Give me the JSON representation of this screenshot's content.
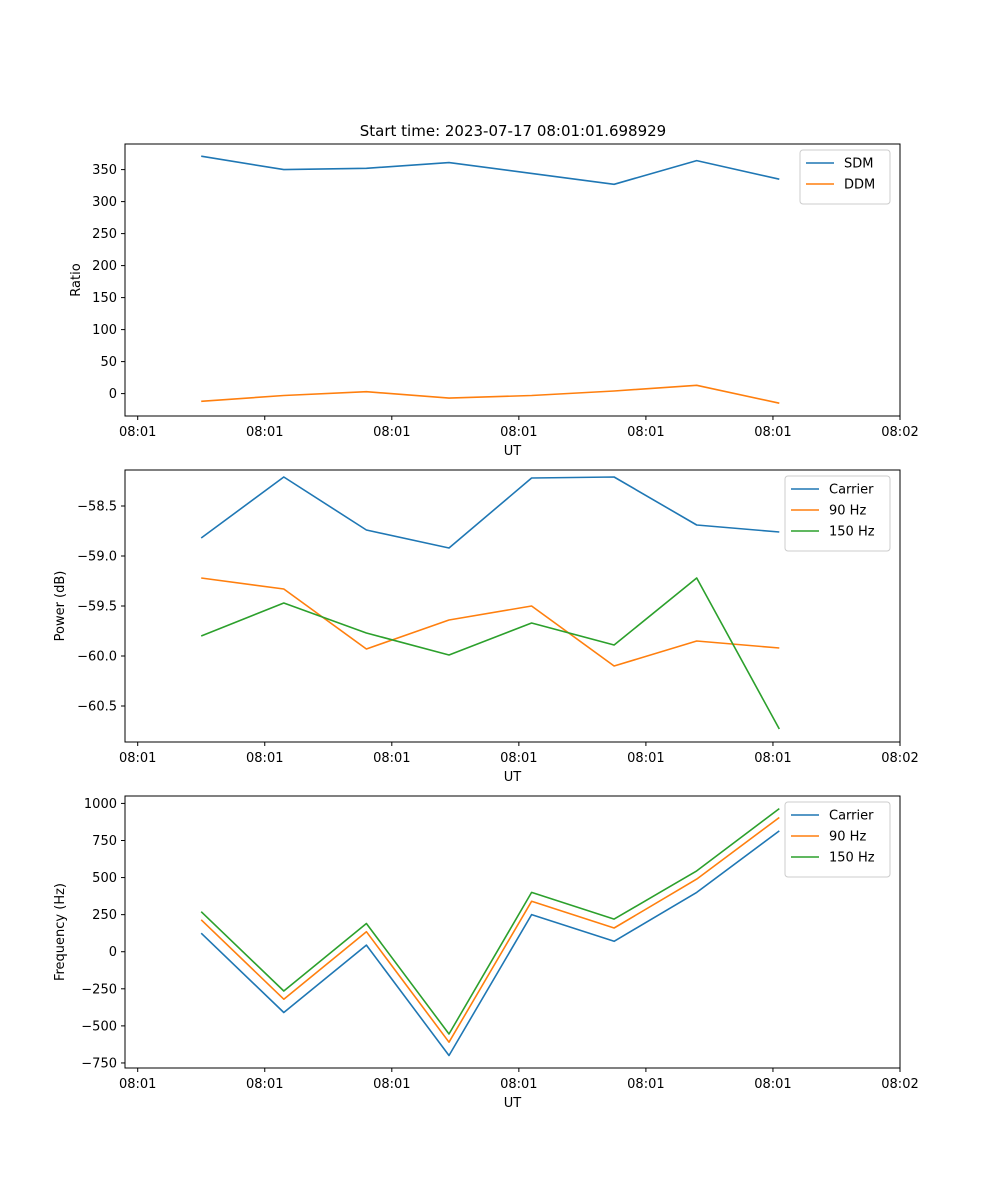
{
  "figure_title": "Start time: 2023-07-17 08:01:01.698929",
  "chart_data": [
    {
      "type": "line",
      "title": "Start time: 2023-07-17 08:01:01.698929",
      "xlabel": "UT",
      "ylabel": "Ratio",
      "x_tick_labels": [
        "08:01",
        "08:01",
        "08:01",
        "08:01",
        "08:01",
        "08:01",
        "08:02"
      ],
      "x": [
        0.5,
        1.15,
        1.8,
        2.45,
        3.1,
        3.75,
        4.4,
        5.05
      ],
      "xlim": [
        -0.1,
        6.0
      ],
      "ylim": [
        -35,
        390
      ],
      "yticks": [
        0,
        50,
        100,
        150,
        200,
        250,
        300,
        350
      ],
      "y_tick_labels": [
        "0",
        "50",
        "100",
        "150",
        "200",
        "250",
        "300",
        "350"
      ],
      "legend_position": "top-right",
      "series": [
        {
          "name": "SDM",
          "color": "#1f77b4",
          "values": [
            371,
            350,
            352,
            361,
            344,
            327,
            364,
            335
          ]
        },
        {
          "name": "DDM",
          "color": "#ff7f0e",
          "values": [
            -12,
            -3,
            3,
            -7,
            -3,
            4,
            13,
            -15
          ]
        }
      ]
    },
    {
      "type": "line",
      "title": "",
      "xlabel": "UT",
      "ylabel": "Power (dB)",
      "x_tick_labels": [
        "08:01",
        "08:01",
        "08:01",
        "08:01",
        "08:01",
        "08:01",
        "08:02"
      ],
      "x": [
        0.5,
        1.15,
        1.8,
        2.45,
        3.1,
        3.75,
        4.4,
        5.05
      ],
      "xlim": [
        -0.1,
        6.0
      ],
      "ylim": [
        -60.86,
        -58.14
      ],
      "yticks": [
        -60.5,
        -60.0,
        -59.5,
        -59.0,
        -58.5
      ],
      "y_tick_labels": [
        "−60.5",
        "−60.0",
        "−59.5",
        "−59.0",
        "−58.5"
      ],
      "legend_position": "top-right",
      "series": [
        {
          "name": "Carrier",
          "color": "#1f77b4",
          "values": [
            -58.82,
            -58.21,
            -58.74,
            -58.92,
            -58.22,
            -58.21,
            -58.69,
            -58.76
          ]
        },
        {
          "name": "90 Hz",
          "color": "#ff7f0e",
          "values": [
            -59.22,
            -59.33,
            -59.93,
            -59.64,
            -59.5,
            -60.1,
            -59.85,
            -59.92
          ]
        },
        {
          "name": "150 Hz",
          "color": "#2ca02c",
          "values": [
            -59.8,
            -59.47,
            -59.77,
            -59.99,
            -59.67,
            -59.89,
            -59.22,
            -60.73
          ]
        }
      ]
    },
    {
      "type": "line",
      "title": "",
      "xlabel": "UT",
      "ylabel": "Frequency (Hz)",
      "x_tick_labels": [
        "08:01",
        "08:01",
        "08:01",
        "08:01",
        "08:01",
        "08:01",
        "08:02"
      ],
      "x": [
        0.5,
        1.15,
        1.8,
        2.45,
        3.1,
        3.75,
        4.4,
        5.05
      ],
      "xlim": [
        -0.1,
        6.0
      ],
      "ylim": [
        -784,
        1050
      ],
      "yticks": [
        -750,
        -500,
        -250,
        0,
        250,
        500,
        750,
        1000
      ],
      "y_tick_labels": [
        "−750",
        "−500",
        "−250",
        "0",
        "250",
        "500",
        "750",
        "1000"
      ],
      "legend_position": "top-right",
      "series": [
        {
          "name": "Carrier",
          "color": "#1f77b4",
          "values": [
            125,
            -410,
            45,
            -700,
            250,
            70,
            400,
            815
          ]
        },
        {
          "name": "90 Hz",
          "color": "#ff7f0e",
          "values": [
            215,
            -320,
            135,
            -610,
            340,
            160,
            490,
            905
          ]
        },
        {
          "name": "150 Hz",
          "color": "#2ca02c",
          "values": [
            270,
            -265,
            190,
            -555,
            400,
            220,
            545,
            965
          ]
        }
      ]
    }
  ]
}
